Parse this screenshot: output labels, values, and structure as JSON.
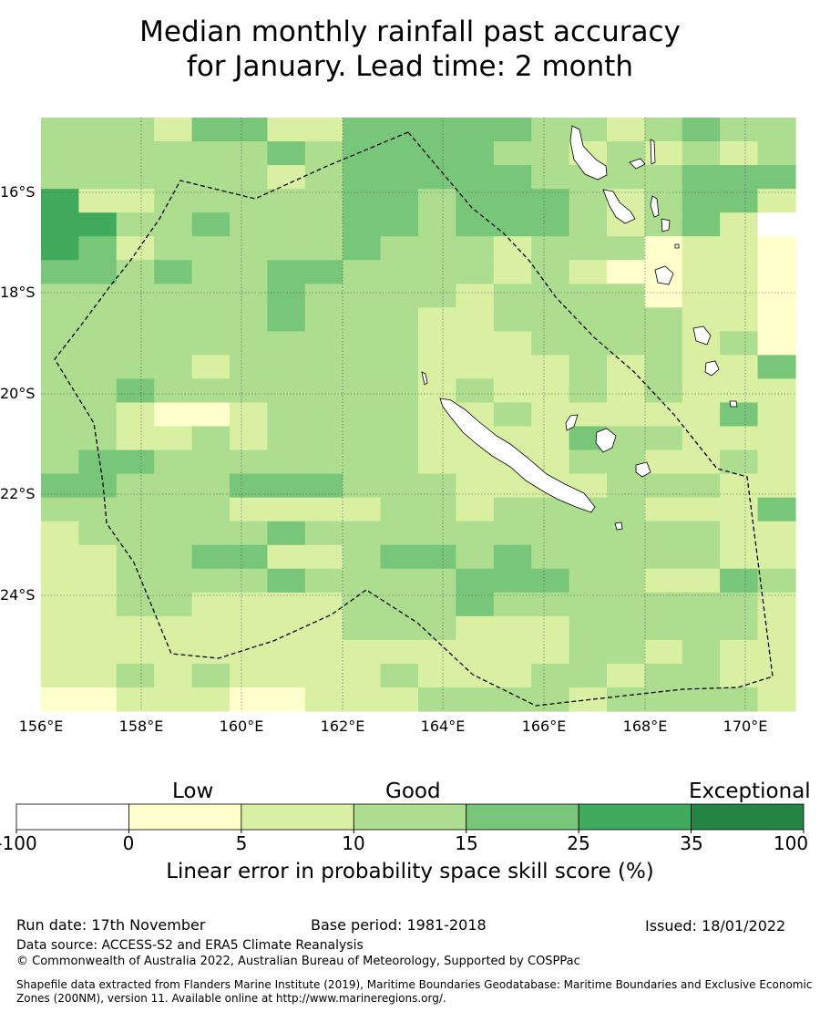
{
  "title_line1": "Median monthly rainfall past accuracy",
  "title_line2": "for January. Lead time: 2 month",
  "lat_labels": [
    "16°S",
    "18°S",
    "20°S",
    "22°S",
    "24°S"
  ],
  "lon_labels": [
    "156°E",
    "158°E",
    "160°E",
    "162°E",
    "164°E",
    "166°E",
    "168°E",
    "170°E"
  ],
  "colorbar": {
    "categories": [
      "Low",
      "Good",
      "Exceptional"
    ],
    "ticks": [
      "-100",
      "0",
      "5",
      "10",
      "15",
      "25",
      "35",
      "100"
    ],
    "colors": [
      "#ffffff",
      "#ffffcc",
      "#d9f0a3",
      "#addd8e",
      "#78c679",
      "#41ab5d",
      "#238443"
    ],
    "label": "Linear error in probability space skill score (%)"
  },
  "footer": {
    "run_date": "Run date: 17th November",
    "base_period": "Base period: 1981-2018",
    "issued": "Issued: 18/01/2022",
    "data_source": "Data source: ACCESS-S2 and ERA5 Climate Reanalysis",
    "copyright": "© Commonwealth of Australia 2022, Australian Bureau of Meteorology, Supported by COSPPac",
    "shapefile": "Shapefile data extracted from Flanders Marine Institute (2019), Maritime Boundaries Geodatabase: Maritime Boundaries and Exclusive Economic Zones (200NM), version 11. Available online at http://www.marineregions.org/."
  }
}
